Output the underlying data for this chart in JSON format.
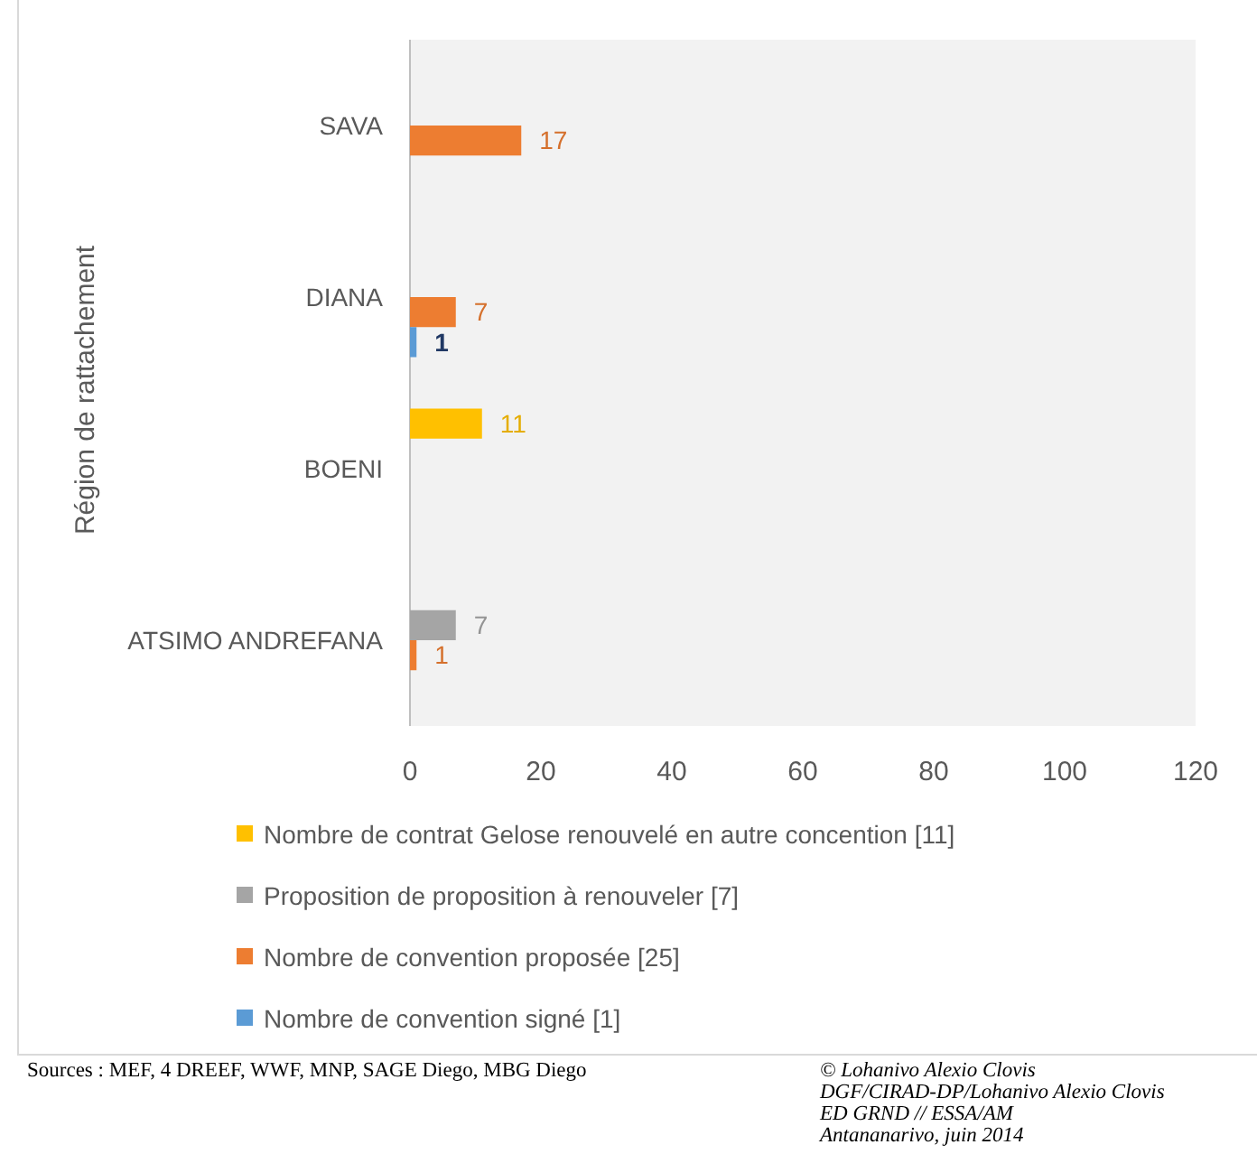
{
  "chart_data": {
    "type": "bar",
    "orientation": "horizontal",
    "ylabel": "Région de rattachement",
    "categories": [
      "SAVA",
      "DIANA",
      "BOENI",
      "ATSIMO ANDREFANA"
    ],
    "series": [
      {
        "name": "Nombre de contrat Gelose renouvelé en autre concention [11]",
        "color": "#ffc000",
        "values": [
          null,
          null,
          11,
          null
        ]
      },
      {
        "name": "Proposition de proposition à renouveler [7]",
        "color": "#a5a5a5",
        "values": [
          null,
          null,
          null,
          7
        ]
      },
      {
        "name": "Nombre de convention proposée [25]",
        "color": "#ed7d31",
        "values": [
          17,
          7,
          null,
          1
        ]
      },
      {
        "name": "Nombre de convention signé [1]",
        "color": "#5b9bd5",
        "values": [
          null,
          1,
          null,
          null
        ]
      }
    ],
    "xlim": [
      0,
      120
    ],
    "xticks": [
      0,
      20,
      40,
      60,
      80,
      100,
      120
    ],
    "grid": false,
    "legend": "bottom",
    "data_labels": true,
    "annotations": [
      "Sources : MEF, 4  DREEF, WWF, MNP, SAGE Diego, MBG Diego",
      "© Lohanivo Alexio Clovis",
      "DGF/CIRAD-DP/Lohanivo Alexio Clovis",
      "ED GRND // ESSA/AM",
      "Antananarivo, juin 2014"
    ]
  }
}
